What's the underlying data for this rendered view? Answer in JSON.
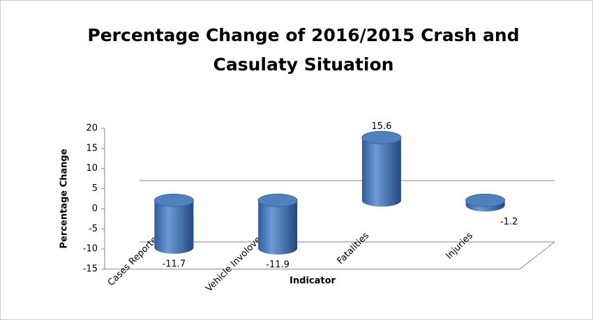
{
  "chart_data": {
    "type": "bar",
    "title": "Percentage Change of 2016/2015 Crash and Casulaty Situation",
    "title_lines": [
      "Percentage Change of 2016/2015 Crash and",
      "Casulaty Situation"
    ],
    "x_label": "Indicator",
    "y_label": "Percentage Change",
    "categories": [
      "Cases Reported",
      "Vehicle Involoved",
      "Fatalities",
      "Injuries"
    ],
    "values": [
      -11.7,
      -11.9,
      15.6,
      -1.2
    ],
    "color": "#4f81bd",
    "ylim": [
      -15,
      20
    ],
    "yticks": [
      -15,
      -10,
      -5,
      0,
      5,
      10,
      15,
      20
    ]
  }
}
